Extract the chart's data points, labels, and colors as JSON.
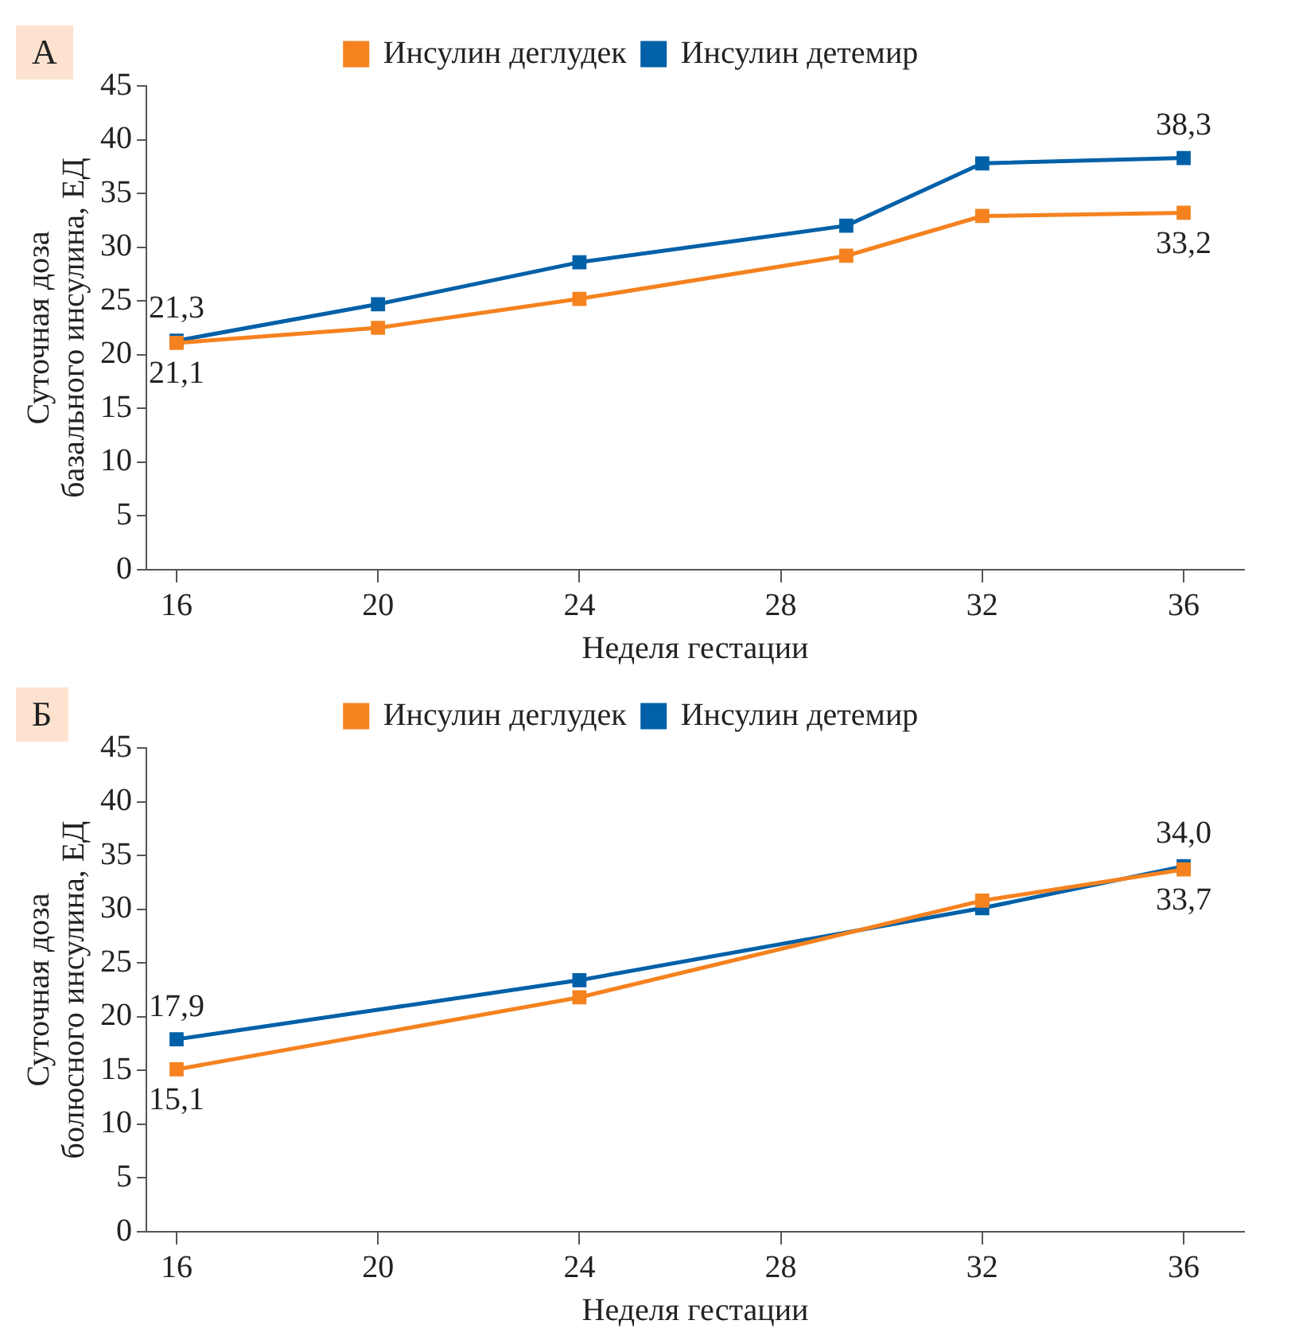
{
  "chart_data": [
    {
      "type": "line",
      "annotations": [
        "А"
      ],
      "xlabel": "Неделя гестации",
      "ylabel": "Суточная доза\nбазального инсулина, ЕД",
      "xlim": [
        15.4,
        37.2
      ],
      "xticks": [
        16,
        20,
        24,
        28,
        32,
        36
      ],
      "ylim": [
        0,
        45
      ],
      "yticks": [
        0,
        5,
        10,
        15,
        20,
        25,
        30,
        35,
        40,
        45
      ],
      "grid": false,
      "legend": "top",
      "marker": "square",
      "line_style": "solid",
      "series": [
        {
          "name": "Инсулин деглудек",
          "color": "#f5821f",
          "x": [
            16,
            20,
            24,
            29.3,
            32,
            36
          ],
          "values": [
            21.1,
            22.5,
            25.2,
            29.2,
            32.9,
            33.2
          ],
          "value_labels": [
            "21,1",
            null,
            null,
            null,
            null,
            "33,2"
          ]
        },
        {
          "name": "Инсулин детемир",
          "color": "#0060a8",
          "x": [
            16,
            20,
            24,
            29.3,
            32,
            36
          ],
          "values": [
            21.3,
            24.7,
            28.6,
            32.0,
            37.8,
            38.3
          ],
          "value_labels": [
            "21,3",
            null,
            null,
            null,
            null,
            "38,3"
          ]
        }
      ]
    },
    {
      "type": "line",
      "annotations": [
        "Б"
      ],
      "xlabel": "Неделя гестации",
      "ylabel": "Суточная доза\nболюсного инсулина, ЕД",
      "xlim": [
        15.4,
        37.2
      ],
      "xticks": [
        16,
        20,
        24,
        28,
        32,
        36
      ],
      "ylim": [
        0,
        45
      ],
      "yticks": [
        0,
        5,
        10,
        15,
        20,
        25,
        30,
        35,
        40,
        45
      ],
      "grid": false,
      "legend": "top",
      "marker": "square",
      "line_style": "solid",
      "series": [
        {
          "name": "Инсулин деглудек",
          "color": "#f5821f",
          "x": [
            16,
            24,
            32,
            36
          ],
          "values": [
            15.1,
            21.8,
            30.8,
            33.7
          ],
          "value_labels": [
            "15,1",
            null,
            null,
            "33,7"
          ]
        },
        {
          "name": "Инсулин детемир",
          "color": "#0060a8",
          "x": [
            16,
            24,
            32,
            36
          ],
          "values": [
            17.9,
            23.4,
            30.1,
            34.0
          ],
          "value_labels": [
            "17,9",
            null,
            null,
            "34,0"
          ]
        }
      ]
    }
  ]
}
